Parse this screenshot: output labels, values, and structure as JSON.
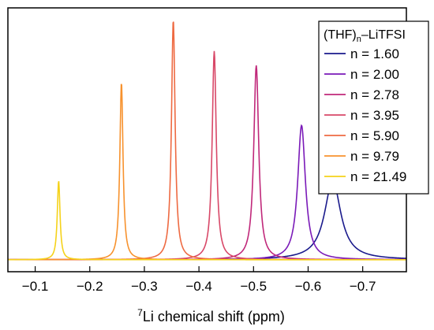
{
  "chart_data": {
    "type": "line",
    "title": "",
    "xlabel_prefix": "",
    "xlabel_superscript": "7",
    "xlabel_main": "Li chemical shift (ppm)",
    "ylabel": "",
    "x_reversed": true,
    "xlim": [
      -0.05,
      -0.78
    ],
    "ylim": [
      -0.05,
      1.05
    ],
    "x_ticks": [
      -0.1,
      -0.2,
      -0.3,
      -0.4,
      -0.5,
      -0.6,
      -0.7
    ],
    "x_tick_labels": [
      "−0.1",
      "−0.2",
      "−0.3",
      "−0.4",
      "−0.5",
      "−0.6",
      "−0.7"
    ],
    "y_ticks_shown": false,
    "grid": false,
    "legend": {
      "position": "top-right",
      "title_main": "(THF)",
      "title_sub": "n",
      "title_suffix": "–LiTFSI"
    },
    "series": [
      {
        "name": "n = 1.60",
        "color": "#1a1a8c",
        "peak_x": -0.645,
        "peak_y": 0.33,
        "hwhm": 0.018
      },
      {
        "name": "n = 2.00",
        "color": "#7a1ab8",
        "peak_x": -0.588,
        "peak_y": 0.56,
        "hwhm": 0.0085
      },
      {
        "name": "n = 2.78",
        "color": "#c0287a",
        "peak_x": -0.505,
        "peak_y": 0.81,
        "hwhm": 0.0055
      },
      {
        "name": "n = 3.95",
        "color": "#d84868",
        "peak_x": -0.428,
        "peak_y": 0.87,
        "hwhm": 0.0045
      },
      {
        "name": "n = 5.90",
        "color": "#ee6a42",
        "peak_x": -0.353,
        "peak_y": 1.0,
        "hwhm": 0.004
      },
      {
        "name": "n = 9.79",
        "color": "#f7922e",
        "peak_x": -0.258,
        "peak_y": 0.74,
        "hwhm": 0.0035
      },
      {
        "name": "n = 21.49",
        "color": "#f5d21a",
        "peak_x": -0.143,
        "peak_y": 0.33,
        "hwhm": 0.003
      }
    ]
  }
}
